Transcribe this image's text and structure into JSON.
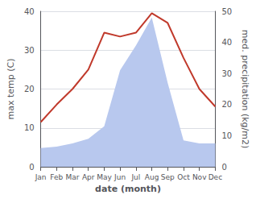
{
  "chart_data": {
    "type": "line",
    "xlabel": "date (month)",
    "ylabel": "max temp (C)",
    "y2label": "med. precipitation (kg/m2)",
    "categories": [
      "Jan",
      "Feb",
      "Mar",
      "Apr",
      "May",
      "Jun",
      "Jul",
      "Aug",
      "Sep",
      "Oct",
      "Nov",
      "Dec"
    ],
    "series": [
      {
        "type": "area",
        "color": "#b8c8ee",
        "axis": "y2",
        "values": [
          6.0,
          6.5,
          7.5,
          9.0,
          13.0,
          31.0,
          39.0,
          48.0,
          27.0,
          8.5,
          7.5,
          7.5
        ]
      },
      {
        "type": "line",
        "color": "#c0392b",
        "values": [
          11.5,
          16.0,
          20.0,
          25.0,
          34.5,
          33.5,
          34.5,
          39.5,
          37.0,
          28.0,
          20.0,
          15.5
        ]
      }
    ],
    "ylim": [
      0,
      40
    ],
    "yticks": [
      0,
      10,
      20,
      30,
      40
    ],
    "y2lim": [
      0,
      50
    ],
    "y2ticks": [
      0,
      10,
      20,
      30,
      40,
      50
    ],
    "grid": true
  }
}
